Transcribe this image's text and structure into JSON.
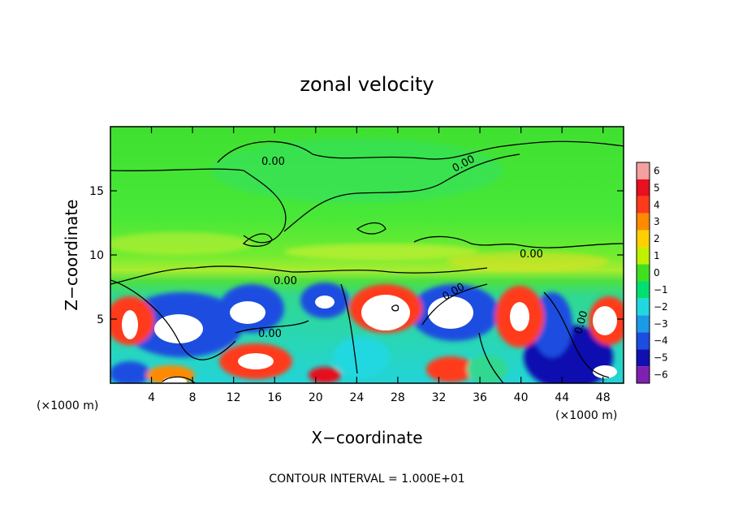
{
  "chart_data": {
    "type": "heatmap",
    "title": "zonal velocity",
    "xlabel": "X−coordinate",
    "ylabel": "Z−coordinate",
    "x_unit_left": "(×1000 m)",
    "x_unit_right": "(×1000 m)",
    "xlim": [
      0,
      50
    ],
    "ylim": [
      0,
      20
    ],
    "x_ticks": [
      4,
      8,
      12,
      16,
      20,
      24,
      28,
      32,
      36,
      40,
      44,
      48
    ],
    "x_tick_labels": [
      "4",
      "8",
      "12",
      "16",
      "20",
      "24",
      "28",
      "32",
      "36",
      "40",
      "44",
      "48"
    ],
    "y_ticks": [
      5,
      10,
      15
    ],
    "y_tick_labels": [
      "5",
      "10",
      "15"
    ],
    "colorbar": {
      "levels": [
        6,
        5,
        4,
        3,
        2,
        1,
        0,
        -1,
        -2,
        -3,
        -4,
        -5,
        -6
      ],
      "labels": [
        "6",
        "5",
        "4",
        "3",
        "2",
        "1",
        "0",
        "−1",
        "−2",
        "−3",
        "−4",
        "−5",
        "−6"
      ],
      "colors": [
        "#f4a0a0",
        "#e8101e",
        "#ff3a1a",
        "#ff8a00",
        "#ffd000",
        "#c0f000",
        "#40e020",
        "#00e070",
        "#20d8e0",
        "#1a9be8",
        "#1a4de0",
        "#1010b0",
        "#8020b0"
      ]
    },
    "contour_labels": [
      "0.00",
      "0.00",
      "0.00",
      "0.00",
      "0.00",
      "0.00",
      "0.00"
    ],
    "footer": "CONTOUR INTERVAL = 1.000E+01"
  }
}
